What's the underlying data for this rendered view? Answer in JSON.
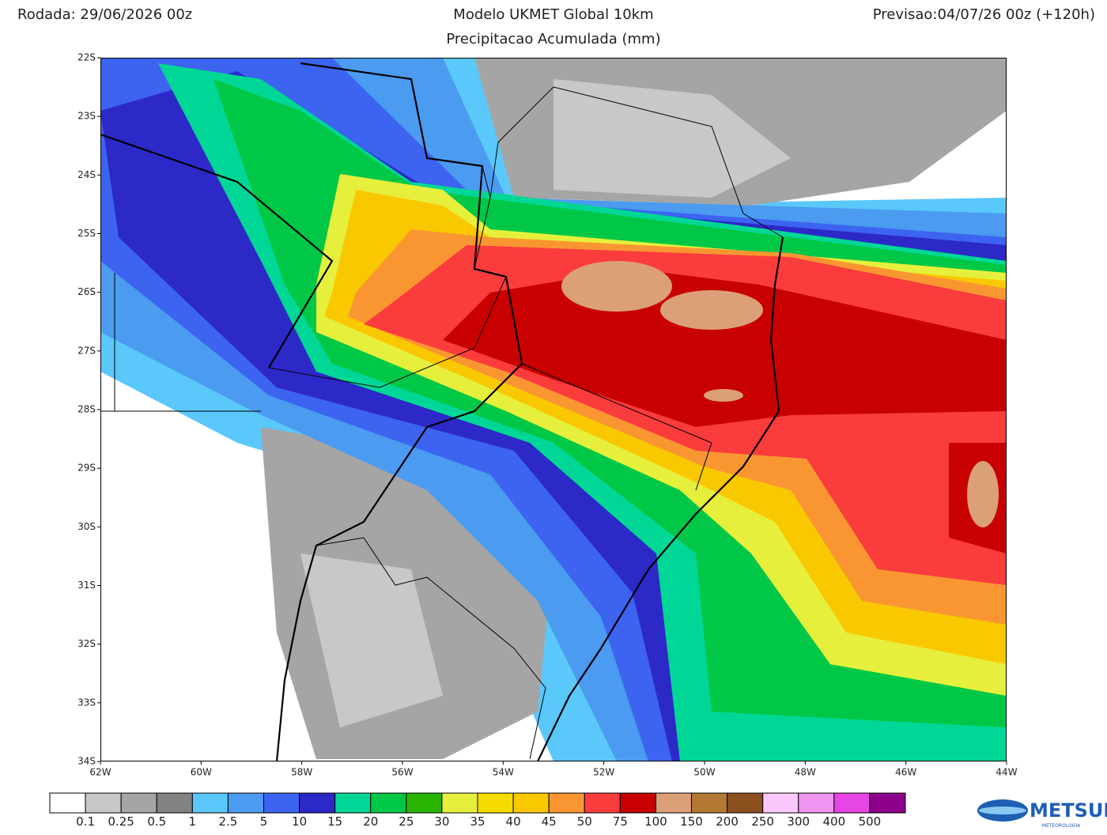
{
  "header": {
    "run": "Rodada: 29/06/2026 00z",
    "title": "Modelo UKMET Global 10km",
    "subtitle": "Precipitacao Acumulada (mm)",
    "forecast": "Previsao:04/07/26 00z (+120h)"
  },
  "map": {
    "lat_labels": [
      "22S",
      "23S",
      "24S",
      "25S",
      "26S",
      "27S",
      "28S",
      "29S",
      "30S",
      "31S",
      "32S",
      "33S",
      "34S"
    ],
    "lon_labels": [
      "62W",
      "60W",
      "58W",
      "56W",
      "54W",
      "52W",
      "50W",
      "48W",
      "46W",
      "44W"
    ]
  },
  "colorbar": {
    "labels": [
      "0.1",
      "0.25",
      "0.5",
      "1",
      "2.5",
      "5",
      "10",
      "15",
      "20",
      "25",
      "30",
      "35",
      "40",
      "45",
      "50",
      "75",
      "100",
      "150",
      "200",
      "250",
      "300",
      "400",
      "500"
    ],
    "colors": [
      "#ffffff",
      "#c8c8c8",
      "#a5a5a5",
      "#828282",
      "#5ac8fa",
      "#4b9bf0",
      "#3c64f0",
      "#2d28c8",
      "#00d796",
      "#00c846",
      "#28b400",
      "#e6f03c",
      "#f5dc00",
      "#fac800",
      "#fa9632",
      "#fa3c3c",
      "#c80000",
      "#dca078",
      "#b47832",
      "#8c501e",
      "#fac8fa",
      "#f096f0",
      "#e646e6",
      "#8c008c"
    ]
  },
  "logo": {
    "name": "METSUL",
    "tagline": "METEOROLOGIA"
  }
}
